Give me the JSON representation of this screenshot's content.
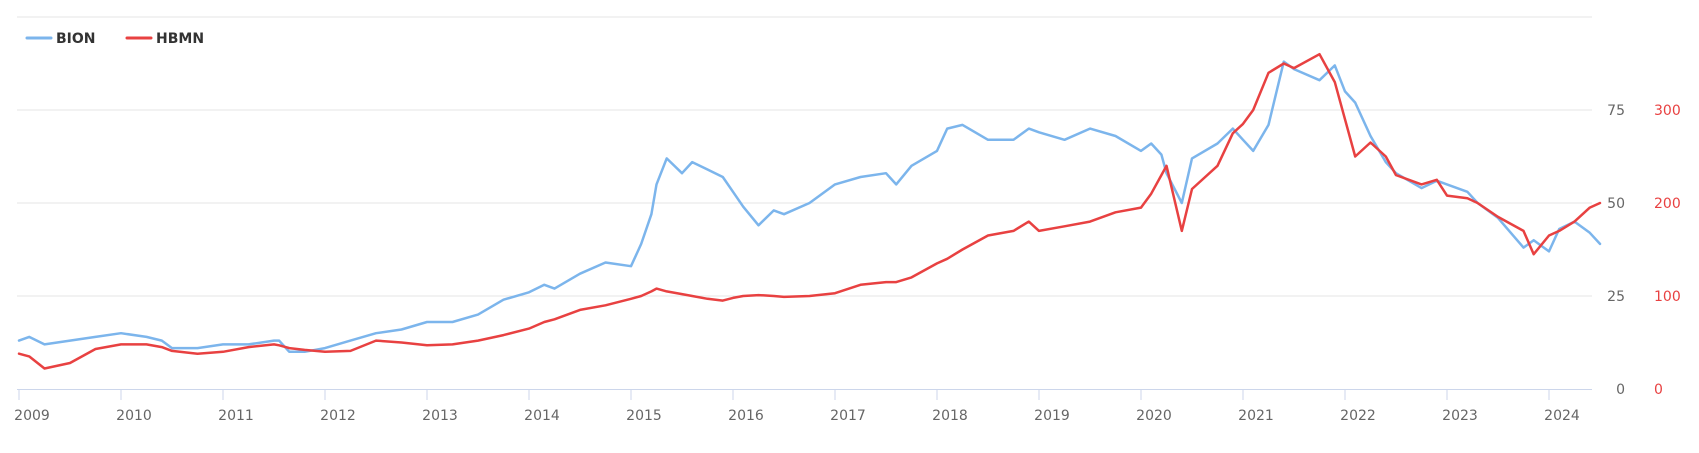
{
  "chart_data": {
    "type": "line",
    "title": "",
    "xlabel": "",
    "ylabel": "",
    "x_ticks": [
      "2009",
      "2010",
      "2011",
      "2012",
      "2013",
      "2014",
      "2015",
      "2016",
      "2017",
      "2018",
      "2019",
      "2020",
      "2021",
      "2022",
      "2023",
      "2024"
    ],
    "xlim": [
      2009.0,
      2024.6
    ],
    "ylim_left": [
      0,
      100
    ],
    "ylim_right": [
      0,
      400
    ],
    "y_ticks_left": [
      "0",
      "25",
      "50",
      "75"
    ],
    "y_ticks_right": [
      "0",
      "100",
      "200",
      "300"
    ],
    "grid": true,
    "legend_position": "top-left",
    "series": [
      {
        "name": "BION",
        "axis": "left",
        "color": "#7cb5ec",
        "x": [
          2009.0,
          2009.1,
          2009.25,
          2009.5,
          2009.75,
          2010.0,
          2010.25,
          2010.4,
          2010.5,
          2010.75,
          2011.0,
          2011.25,
          2011.5,
          2011.55,
          2011.65,
          2011.8,
          2012.0,
          2012.25,
          2012.5,
          2012.75,
          2013.0,
          2013.25,
          2013.5,
          2013.75,
          2014.0,
          2014.15,
          2014.25,
          2014.5,
          2014.75,
          2015.0,
          2015.1,
          2015.2,
          2015.25,
          2015.35,
          2015.5,
          2015.6,
          2015.75,
          2015.9,
          2016.0,
          2016.1,
          2016.25,
          2016.4,
          2016.5,
          2016.75,
          2017.0,
          2017.25,
          2017.5,
          2017.6,
          2017.75,
          2018.0,
          2018.1,
          2018.25,
          2018.5,
          2018.75,
          2018.9,
          2019.0,
          2019.25,
          2019.5,
          2019.75,
          2020.0,
          2020.1,
          2020.2,
          2020.25,
          2020.4,
          2020.5,
          2020.75,
          2020.9,
          2021.0,
          2021.1,
          2021.25,
          2021.4,
          2021.5,
          2021.75,
          2021.9,
          2022.0,
          2022.1,
          2022.25,
          2022.4,
          2022.5,
          2022.75,
          2022.9,
          2023.0,
          2023.2,
          2023.3,
          2023.5,
          2023.75,
          2023.85,
          2024.0,
          2024.1,
          2024.25,
          2024.4,
          2024.5
        ],
        "values": [
          13,
          14,
          12,
          13,
          14,
          15,
          14,
          13,
          11,
          11,
          12,
          12,
          13,
          13,
          10,
          10,
          11,
          13,
          15,
          16,
          18,
          18,
          20,
          24,
          26,
          28,
          27,
          31,
          34,
          33,
          39,
          47,
          55,
          62,
          58,
          61,
          59,
          57,
          53,
          49,
          44,
          48,
          47,
          50,
          55,
          57,
          58,
          55,
          60,
          64,
          70,
          71,
          67,
          67,
          70,
          69,
          67,
          70,
          68,
          64,
          66,
          63,
          58,
          50,
          62,
          66,
          70,
          67,
          64,
          71,
          88,
          86,
          83,
          87,
          80,
          77,
          68,
          61,
          58,
          54,
          56,
          55,
          53,
          50,
          46,
          38,
          40,
          37,
          43,
          45,
          42,
          39
        ]
      },
      {
        "name": "HBMN",
        "axis": "right",
        "color": "#e84141",
        "x": [
          2009.0,
          2009.1,
          2009.25,
          2009.5,
          2009.75,
          2010.0,
          2010.25,
          2010.4,
          2010.5,
          2010.75,
          2011.0,
          2011.25,
          2011.5,
          2011.55,
          2011.65,
          2011.8,
          2012.0,
          2012.25,
          2012.5,
          2012.75,
          2013.0,
          2013.25,
          2013.5,
          2013.75,
          2014.0,
          2014.15,
          2014.25,
          2014.5,
          2014.75,
          2015.0,
          2015.1,
          2015.2,
          2015.25,
          2015.35,
          2015.5,
          2015.6,
          2015.75,
          2015.9,
          2016.0,
          2016.1,
          2016.25,
          2016.4,
          2016.5,
          2016.75,
          2017.0,
          2017.25,
          2017.5,
          2017.6,
          2017.75,
          2018.0,
          2018.1,
          2018.25,
          2018.5,
          2018.75,
          2018.9,
          2019.0,
          2019.25,
          2019.5,
          2019.75,
          2020.0,
          2020.1,
          2020.2,
          2020.25,
          2020.4,
          2020.5,
          2020.75,
          2020.9,
          2021.0,
          2021.1,
          2021.25,
          2021.4,
          2021.5,
          2021.75,
          2021.9,
          2022.0,
          2022.1,
          2022.25,
          2022.4,
          2022.5,
          2022.75,
          2022.9,
          2023.0,
          2023.2,
          2023.3,
          2023.5,
          2023.75,
          2023.85,
          2024.0,
          2024.1,
          2024.25,
          2024.4,
          2024.5
        ],
        "values": [
          38,
          35,
          22,
          28,
          43,
          48,
          48,
          45,
          41,
          38,
          40,
          45,
          48,
          47,
          44,
          42,
          40,
          41,
          52,
          50,
          47,
          48,
          52,
          58,
          65,
          72,
          75,
          85,
          90,
          97,
          100,
          105,
          108,
          105,
          102,
          100,
          97,
          95,
          98,
          100,
          101,
          100,
          99,
          100,
          103,
          112,
          115,
          115,
          120,
          135,
          140,
          150,
          165,
          170,
          180,
          170,
          175,
          180,
          190,
          195,
          210,
          230,
          240,
          170,
          215,
          240,
          275,
          285,
          300,
          340,
          350,
          345,
          360,
          330,
          290,
          250,
          265,
          250,
          230,
          220,
          225,
          208,
          205,
          200,
          185,
          170,
          145,
          165,
          170,
          180,
          195,
          200
        ]
      }
    ]
  }
}
